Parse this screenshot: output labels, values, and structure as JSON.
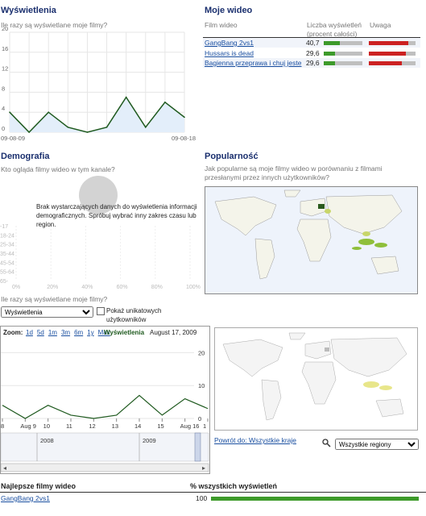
{
  "views": {
    "title": "Wyświetlenia",
    "subtitle": "Ile razy są wyświetlane moje filmy?",
    "y_ticks": [
      "20",
      "16",
      "12",
      "8",
      "4",
      "0"
    ],
    "x_start": "09-08-09",
    "x_end": "09-08-18"
  },
  "my_videos": {
    "title": "Moje wideo",
    "col_video": "Film wideo",
    "col_views": "Liczba wyświetleń (procent całości)",
    "col_attention": "Uwaga",
    "rows": [
      {
        "name": "GangBang 2vs1",
        "percent": "40,7",
        "views_frac": 0.41,
        "attention_frac": 0.85
      },
      {
        "name": "Hussars is dead",
        "percent": "29,6",
        "views_frac": 0.3,
        "attention_frac": 0.8
      },
      {
        "name": "Bagienna przeprawa i chuj jeste",
        "percent": "29,6",
        "views_frac": 0.3,
        "attention_frac": 0.7
      }
    ]
  },
  "demography": {
    "title": "Demografia",
    "subtitle": "Kto ogląda filmy wideo w tym kanale?",
    "no_data": "Brak wystarczających danych do wyświetlenia informacji demograficznych. Spróbuj wybrać inny zakres czasu lub region.",
    "age_labels": [
      "-17",
      "18-24",
      "25-34",
      "35-44",
      "45-54",
      "55-64",
      "65-"
    ],
    "x_ticks": [
      "0%",
      "20%",
      "40%",
      "60%",
      "80%",
      "100%"
    ]
  },
  "popularity": {
    "title": "Popularność",
    "subtitle": "Jak popularne są moje filmy wideo w porównaniu z filmami przesłanymi przez innych użytkowników?"
  },
  "timeline": {
    "question": "Ile razy są wyświetlane moje filmy?",
    "metric_select": "Wyświetlenia",
    "unique_label": "Pokaż unikatowych użytkowników",
    "zoom_label": "Zoom:",
    "zoom_options": [
      "1d",
      "5d",
      "1m",
      "3m",
      "6m",
      "1y",
      "Max"
    ],
    "series_label": "Wyświetlenia",
    "date_label": "August 17, 2009",
    "y_ticks": [
      "20",
      "10",
      "0"
    ],
    "x_ticks": [
      "8",
      "Aug 9",
      "10",
      "11",
      "12",
      "13",
      "14",
      "15",
      "Aug 16",
      "1"
    ],
    "years": [
      "2008",
      "2009"
    ]
  },
  "region": {
    "back_link": "Powrót do: Wszystkie kraje",
    "select_value": "Wszystkie regiony"
  },
  "top_videos": {
    "title": "Najlepsze filmy wideo",
    "col_percent": "% wszystkich wyświetleń",
    "rows": [
      {
        "name": "GangBang 2vs1",
        "value": "100",
        "frac": 1.0
      }
    ]
  },
  "colors": {
    "title_blue": "#1a2f6e",
    "link_blue": "#1a4fa0",
    "line_green": "#1f5a1f",
    "bar_green": "#3d9a2a",
    "bar_red": "#cc2222",
    "map_ocean": "#eef3fb",
    "map_land": "#f4f4ea",
    "map_highlight": "#e8e68a"
  },
  "chart_data": {
    "type": "line",
    "x": [
      "09-08-09",
      "09-08-10",
      "09-08-11",
      "09-08-12",
      "09-08-13",
      "09-08-14",
      "09-08-15",
      "09-08-16",
      "09-08-17",
      "09-08-18"
    ],
    "values": [
      4,
      0,
      4,
      1,
      0,
      1,
      7,
      1,
      6,
      3
    ],
    "ylim": [
      0,
      20
    ]
  }
}
